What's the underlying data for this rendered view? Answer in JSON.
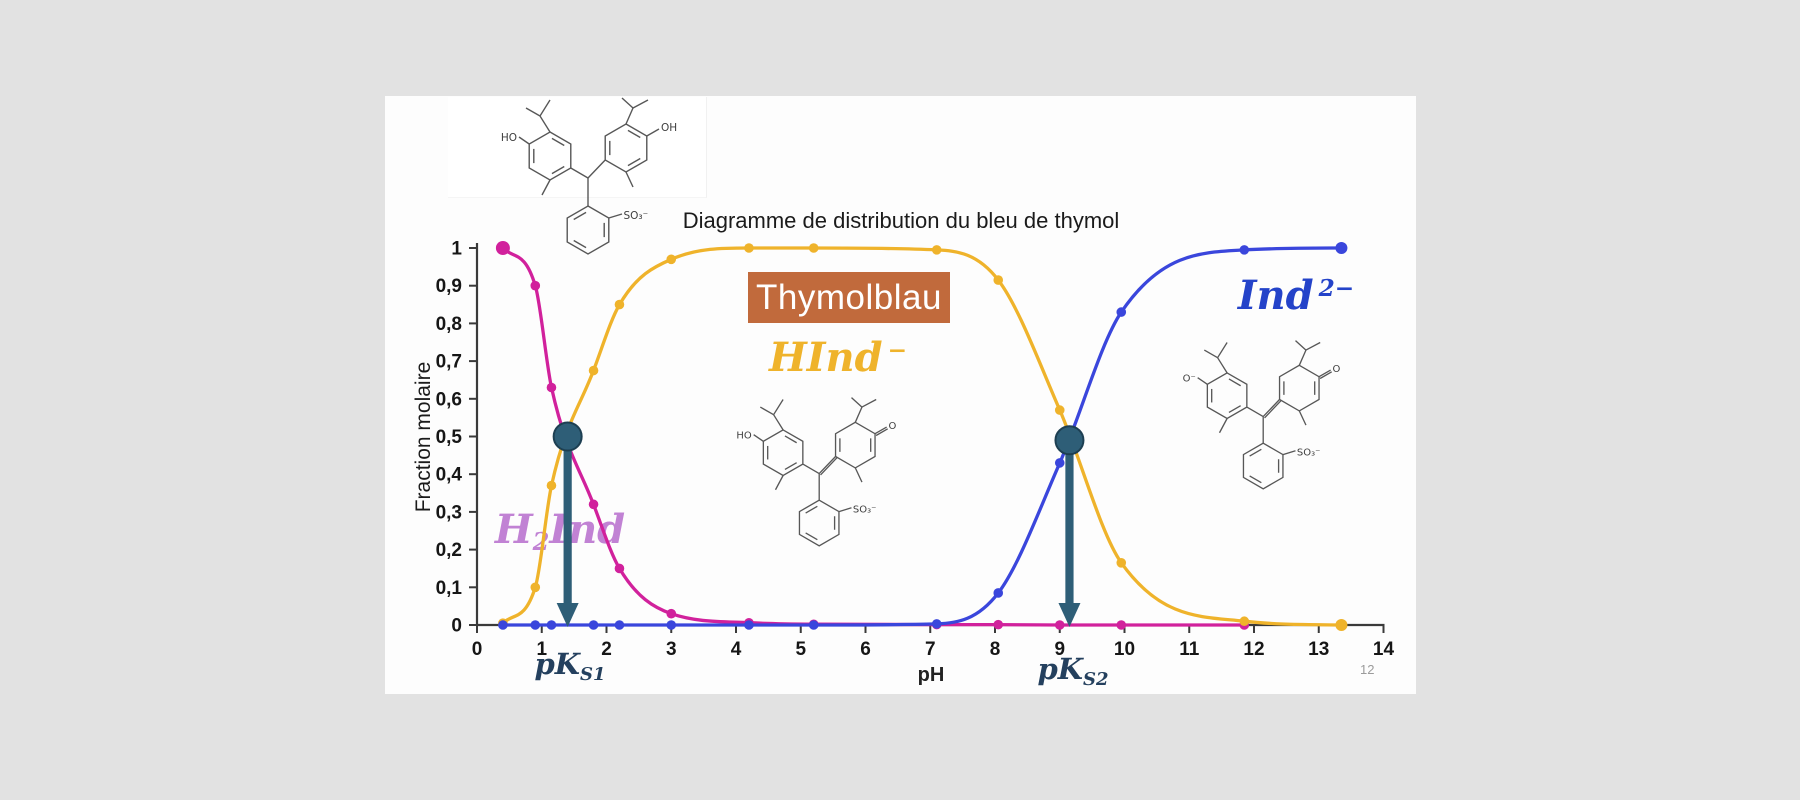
{
  "page": {
    "background": "#e2e2e2",
    "slide_bg": "#fdfdfd",
    "page_number": "12"
  },
  "chart_data": {
    "type": "line",
    "title": "Diagramme de distribution du bleu de thymol",
    "xlabel": "pH",
    "ylabel": "Fraction molaire",
    "xlim": [
      0,
      14
    ],
    "ylim": [
      0,
      1
    ],
    "grid": false,
    "legend": "none",
    "axis_color": "#3a3a3a",
    "tick_label_color": "#161616",
    "x_ticks": [
      "0",
      "1",
      "2",
      "3",
      "4",
      "5",
      "6",
      "7",
      "8",
      "9",
      "10",
      "11",
      "12",
      "13",
      "14"
    ],
    "y_ticks": [
      "0",
      "0,1",
      "0,2",
      "0,3",
      "0,4",
      "0,5",
      "0,6",
      "0,7",
      "0,8",
      "0,9",
      "1"
    ],
    "series": [
      {
        "name": "H2Ind",
        "color": "#d1219c",
        "x": [
          0.4,
          0.9,
          1.15,
          1.8,
          2.2,
          3.0,
          4.2,
          5.2,
          7.1,
          8.05,
          9.0,
          9.95,
          11.85
        ],
        "y": [
          1.0,
          0.9,
          0.63,
          0.32,
          0.15,
          0.03,
          0.006,
          0.002,
          0.001,
          0.001,
          0.0,
          0.0,
          0.0
        ],
        "first_point_emphasis": true
      },
      {
        "name": "HInd-",
        "color": "#efb32b",
        "x": [
          0.4,
          0.9,
          1.15,
          1.8,
          2.2,
          3.0,
          4.2,
          5.2,
          7.1,
          8.05,
          9.0,
          9.95,
          11.85,
          13.35
        ],
        "y": [
          0.005,
          0.1,
          0.37,
          0.675,
          0.85,
          0.97,
          1.0,
          1.0,
          0.995,
          0.915,
          0.57,
          0.165,
          0.01,
          0.0
        ],
        "end_point_emphasis": true
      },
      {
        "name": "Ind2-",
        "color": "#3a46dc",
        "x": [
          0.4,
          0.9,
          1.15,
          1.8,
          2.2,
          3.0,
          4.2,
          5.2,
          7.1,
          8.05,
          9.0,
          9.95,
          11.85,
          13.35
        ],
        "y": [
          0.0,
          0.0,
          0.0,
          0.0,
          0.0,
          0.0,
          0.0,
          0.0,
          0.003,
          0.085,
          0.43,
          0.83,
          0.995,
          1.0
        ],
        "end_point_emphasis": true
      }
    ],
    "annotations": {
      "marker_color": "#2e5e77",
      "marker_stroke": "#1d3f52",
      "pk_markers": [
        {
          "x": 1.4,
          "y": 0.5
        },
        {
          "x": 9.15,
          "y": 0.49
        }
      ]
    }
  },
  "labels": {
    "thymolblau": {
      "text": "Thymolblau",
      "bg": "#c16a3c",
      "color": "#ffffff"
    },
    "h2ind": {
      "pre": "H",
      "sub": "2",
      "post": "Ind",
      "color": "#c182d4"
    },
    "hind": {
      "base": "HInd",
      "sup": "−",
      "color": "#efb32b"
    },
    "ind2": {
      "base": "Ind",
      "sup": "2−",
      "color": "#2443c9"
    },
    "pks1": {
      "base": "pK",
      "sub": "S1"
    },
    "pks2": {
      "base": "pK",
      "sub": "S2"
    },
    "pk_color": "#24405e"
  },
  "structures": [
    {
      "name": "structure-h2ind",
      "left": "HO",
      "right": "OH",
      "so3": "SO₃⁻",
      "quinoid": false
    },
    {
      "name": "structure-hind",
      "left": "HO",
      "right": "O",
      "so3": "SO₃⁻",
      "quinoid": true
    },
    {
      "name": "structure-ind2",
      "left": "O⁻",
      "right": "O",
      "so3": "SO₃⁻",
      "quinoid": true
    }
  ]
}
